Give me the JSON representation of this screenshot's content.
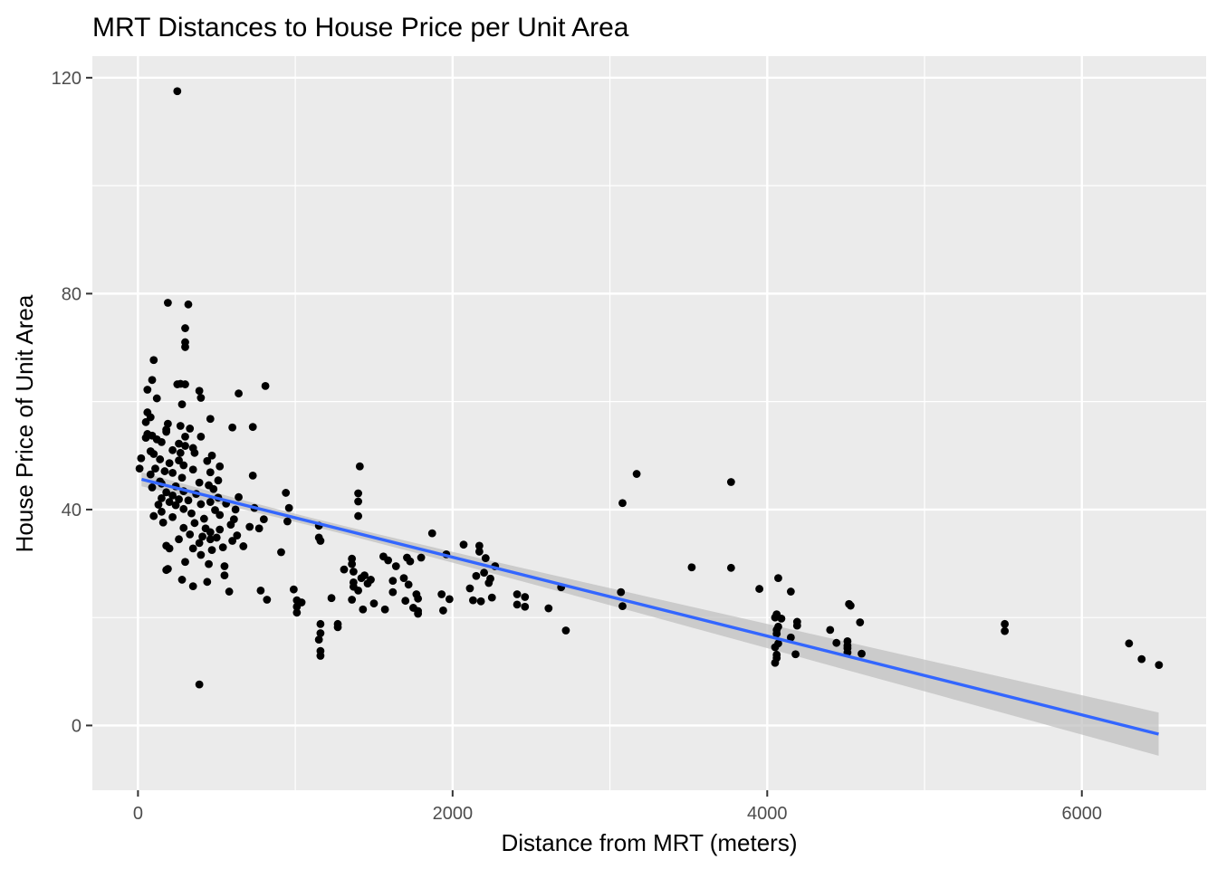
{
  "chart_data": {
    "type": "scatter",
    "title": "MRT Distances to House Price per Unit Area",
    "xlabel": "Distance from MRT (meters)",
    "ylabel": "House Price of Unit Area",
    "xlim": [
      -290,
      6790
    ],
    "ylim": [
      -12,
      124
    ],
    "x_ticks": [
      0,
      2000,
      4000,
      6000
    ],
    "x_tick_labels": [
      "0",
      "2000",
      "4000",
      "6000"
    ],
    "y_ticks": [
      0,
      40,
      80,
      120
    ],
    "y_tick_labels": [
      "0",
      "40",
      "80",
      "120"
    ],
    "grid": true,
    "background": "#ebebeb",
    "point_color": "#000000",
    "fit_line_color": "#3366ff",
    "confidence_band_color": "#bdbdbd",
    "series": [
      {
        "type": "scatter",
        "points": [
          [
            250,
            117.5
          ],
          [
            190,
            78.3
          ],
          [
            320,
            78
          ],
          [
            300,
            73.6
          ],
          [
            300,
            71
          ],
          [
            300,
            70.1
          ],
          [
            100,
            67.7
          ],
          [
            90,
            64
          ],
          [
            270,
            63.3
          ],
          [
            300,
            63.2
          ],
          [
            250,
            63.2
          ],
          [
            810,
            62.9
          ],
          [
            60,
            62.2
          ],
          [
            390,
            62
          ],
          [
            640,
            61.5
          ],
          [
            120,
            60.6
          ],
          [
            400,
            60.7
          ],
          [
            280,
            59.5
          ],
          [
            60,
            58
          ],
          [
            80,
            57.1
          ],
          [
            460,
            56.8
          ],
          [
            50,
            56.2
          ],
          [
            190,
            55.9
          ],
          [
            270,
            55.5
          ],
          [
            600,
            55.2
          ],
          [
            730,
            55.3
          ],
          [
            330,
            55
          ],
          [
            180,
            54.8
          ],
          [
            180,
            54.4
          ],
          [
            60,
            54
          ],
          [
            90,
            53.7
          ],
          [
            300,
            53.5
          ],
          [
            400,
            53.5
          ],
          [
            50,
            53.3
          ],
          [
            120,
            53
          ],
          [
            150,
            52.5
          ],
          [
            260,
            52.2
          ],
          [
            300,
            51.8
          ],
          [
            350,
            51.4
          ],
          [
            220,
            51
          ],
          [
            80,
            50.8
          ],
          [
            100,
            50.3
          ],
          [
            270,
            50.5
          ],
          [
            360,
            50.5
          ],
          [
            470,
            50
          ],
          [
            20,
            49.5
          ],
          [
            140,
            49.3
          ],
          [
            260,
            49.1
          ],
          [
            440,
            49
          ],
          [
            200,
            48.6
          ],
          [
            290,
            48.2
          ],
          [
            1410,
            48
          ],
          [
            520,
            48
          ],
          [
            110,
            47.6
          ],
          [
            350,
            47.4
          ],
          [
            170,
            47.1
          ],
          [
            460,
            46.9
          ],
          [
            220,
            46.8
          ],
          [
            80,
            46.5
          ],
          [
            730,
            46.3
          ],
          [
            3170,
            46.6
          ],
          [
            10,
            47.6
          ],
          [
            280,
            45.9
          ],
          [
            510,
            45.4
          ],
          [
            140,
            45.2
          ],
          [
            390,
            45
          ],
          [
            3770,
            45.1
          ],
          [
            150,
            44.8
          ],
          [
            240,
            44.3
          ],
          [
            450,
            44.5
          ],
          [
            90,
            44.1
          ],
          [
            480,
            43.8
          ],
          [
            290,
            43.4
          ],
          [
            180,
            43.2
          ],
          [
            940,
            43.1
          ],
          [
            1400,
            43
          ],
          [
            370,
            42.9
          ],
          [
            220,
            42.6
          ],
          [
            640,
            42.3
          ],
          [
            510,
            42.2
          ],
          [
            150,
            42.1
          ],
          [
            260,
            41.9
          ],
          [
            320,
            41.7
          ],
          [
            1400,
            41.5
          ],
          [
            460,
            41.4
          ],
          [
            200,
            41.4
          ],
          [
            560,
            41.1
          ],
          [
            400,
            41
          ],
          [
            3080,
            41.2
          ],
          [
            130,
            40.9
          ],
          [
            240,
            40.8
          ],
          [
            740,
            40.3
          ],
          [
            620,
            40
          ],
          [
            290,
            40.1
          ],
          [
            490,
            39.9
          ],
          [
            960,
            40.3
          ],
          [
            150,
            39.6
          ],
          [
            340,
            39.3
          ],
          [
            520,
            39
          ],
          [
            1400,
            38.8
          ],
          [
            100,
            38.8
          ],
          [
            220,
            38.6
          ],
          [
            420,
            38.3
          ],
          [
            610,
            38.2
          ],
          [
            800,
            38.2
          ],
          [
            950,
            37.8
          ],
          [
            160,
            37.6
          ],
          [
            360,
            37.5
          ],
          [
            590,
            37.2
          ],
          [
            710,
            36.8
          ],
          [
            1150,
            37
          ],
          [
            290,
            36.6
          ],
          [
            430,
            36.5
          ],
          [
            520,
            36.3
          ],
          [
            770,
            36.5
          ],
          [
            460,
            35.8
          ],
          [
            1870,
            35.6
          ],
          [
            330,
            35.4
          ],
          [
            630,
            35.2
          ],
          [
            410,
            35
          ],
          [
            1150,
            34.8
          ],
          [
            500,
            34.8
          ],
          [
            260,
            34.5
          ],
          [
            600,
            34.2
          ],
          [
            1160,
            34.2
          ],
          [
            460,
            34.5
          ],
          [
            2070,
            33.5
          ],
          [
            390,
            33.8
          ],
          [
            180,
            33.3
          ],
          [
            670,
            33.2
          ],
          [
            2170,
            33.3
          ],
          [
            540,
            33
          ],
          [
            350,
            32.8
          ],
          [
            200,
            32.8
          ],
          [
            470,
            32.5
          ],
          [
            2170,
            32.2
          ],
          [
            910,
            32.1
          ],
          [
            1960,
            31.7
          ],
          [
            400,
            31.6
          ],
          [
            1560,
            31.3
          ],
          [
            1710,
            31.1
          ],
          [
            1800,
            31.1
          ],
          [
            1360,
            30.9
          ],
          [
            2210,
            31
          ],
          [
            1590,
            30.6
          ],
          [
            1730,
            30.4
          ],
          [
            300,
            30.3
          ],
          [
            1360,
            29.9
          ],
          [
            450,
            29.9
          ],
          [
            1640,
            29.5
          ],
          [
            550,
            29.5
          ],
          [
            3770,
            29.2
          ],
          [
            3520,
            29.3
          ],
          [
            2270,
            29.5
          ],
          [
            190,
            29
          ],
          [
            1310,
            28.9
          ],
          [
            180,
            28.8
          ],
          [
            1370,
            28.5
          ],
          [
            2200,
            28.3
          ],
          [
            1440,
            27.8
          ],
          [
            550,
            27.8
          ],
          [
            2150,
            27.7
          ],
          [
            1690,
            27.3
          ],
          [
            1420,
            27.3
          ],
          [
            4070,
            27.3
          ],
          [
            280,
            27
          ],
          [
            1480,
            27
          ],
          [
            2240,
            27.2
          ],
          [
            1620,
            26.8
          ],
          [
            440,
            26.6
          ],
          [
            1370,
            26.5
          ],
          [
            2230,
            26.4
          ],
          [
            1460,
            26.3
          ],
          [
            1720,
            26.1
          ],
          [
            350,
            25.8
          ],
          [
            2110,
            25.4
          ],
          [
            2690,
            25.6
          ],
          [
            1370,
            25.7
          ],
          [
            990,
            25.2
          ],
          [
            3950,
            25.3
          ],
          [
            1400,
            25
          ],
          [
            780,
            25
          ],
          [
            1620,
            24.7
          ],
          [
            580,
            24.8
          ],
          [
            4150,
            24.8
          ],
          [
            3070,
            24.7
          ],
          [
            1930,
            24.3
          ],
          [
            2410,
            24.3
          ],
          [
            1770,
            24.3
          ],
          [
            2460,
            23.8
          ],
          [
            2250,
            23.7
          ],
          [
            1230,
            23.6
          ],
          [
            1780,
            23.5
          ],
          [
            1360,
            23.3
          ],
          [
            1010,
            23.2
          ],
          [
            2130,
            23.2
          ],
          [
            820,
            23.3
          ],
          [
            1980,
            23.4
          ],
          [
            1700,
            23.1
          ],
          [
            2180,
            23
          ],
          [
            1040,
            22.8
          ],
          [
            1500,
            22.6
          ],
          [
            4520,
            22.5
          ],
          [
            3080,
            22.1
          ],
          [
            2410,
            22.4
          ],
          [
            2460,
            22
          ],
          [
            1010,
            22
          ],
          [
            4530,
            22.2
          ],
          [
            1750,
            21.8
          ],
          [
            1430,
            21.5
          ],
          [
            1570,
            21.5
          ],
          [
            2610,
            21.7
          ],
          [
            1780,
            21.2
          ],
          [
            1940,
            21.3
          ],
          [
            1010,
            20.9
          ],
          [
            1780,
            20.7
          ],
          [
            4060,
            20.6
          ],
          [
            4050,
            20
          ],
          [
            4090,
            19.8
          ],
          [
            4190,
            19.2
          ],
          [
            4590,
            19.1
          ],
          [
            1160,
            18.8
          ],
          [
            1270,
            18.8
          ],
          [
            5510,
            18.8
          ],
          [
            4070,
            18.3
          ],
          [
            4190,
            18.5
          ],
          [
            1270,
            18.2
          ],
          [
            4060,
            17.7
          ],
          [
            4400,
            17.7
          ],
          [
            2720,
            17.6
          ],
          [
            5510,
            17.5
          ],
          [
            4060,
            17
          ],
          [
            1160,
            17.1
          ],
          [
            4150,
            16.3
          ],
          [
            1150,
            15.9
          ],
          [
            4510,
            15.6
          ],
          [
            4440,
            15.3
          ],
          [
            6300,
            15.2
          ],
          [
            4070,
            15.2
          ],
          [
            4510,
            14.8
          ],
          [
            4510,
            14.3
          ],
          [
            4050,
            14.5
          ],
          [
            1160,
            13.8
          ],
          [
            4600,
            13.3
          ],
          [
            4180,
            13.2
          ],
          [
            4510,
            13.5
          ],
          [
            4060,
            13.1
          ],
          [
            1160,
            12.9
          ],
          [
            4060,
            12.5
          ],
          [
            6380,
            12.3
          ],
          [
            4050,
            11.6
          ],
          [
            6490,
            11.2
          ],
          [
            390,
            7.6
          ]
        ]
      },
      {
        "type": "linear_fit",
        "name": "",
        "x": [
          23,
          6488
        ],
        "y": [
          45.6,
          -1.6
        ],
        "band_half_width_at_x_min": 1.3,
        "band_half_width_at_x_mean": 0.75,
        "band_half_width_at_x_max": 4.0,
        "x_mean": 1084
      }
    ]
  }
}
